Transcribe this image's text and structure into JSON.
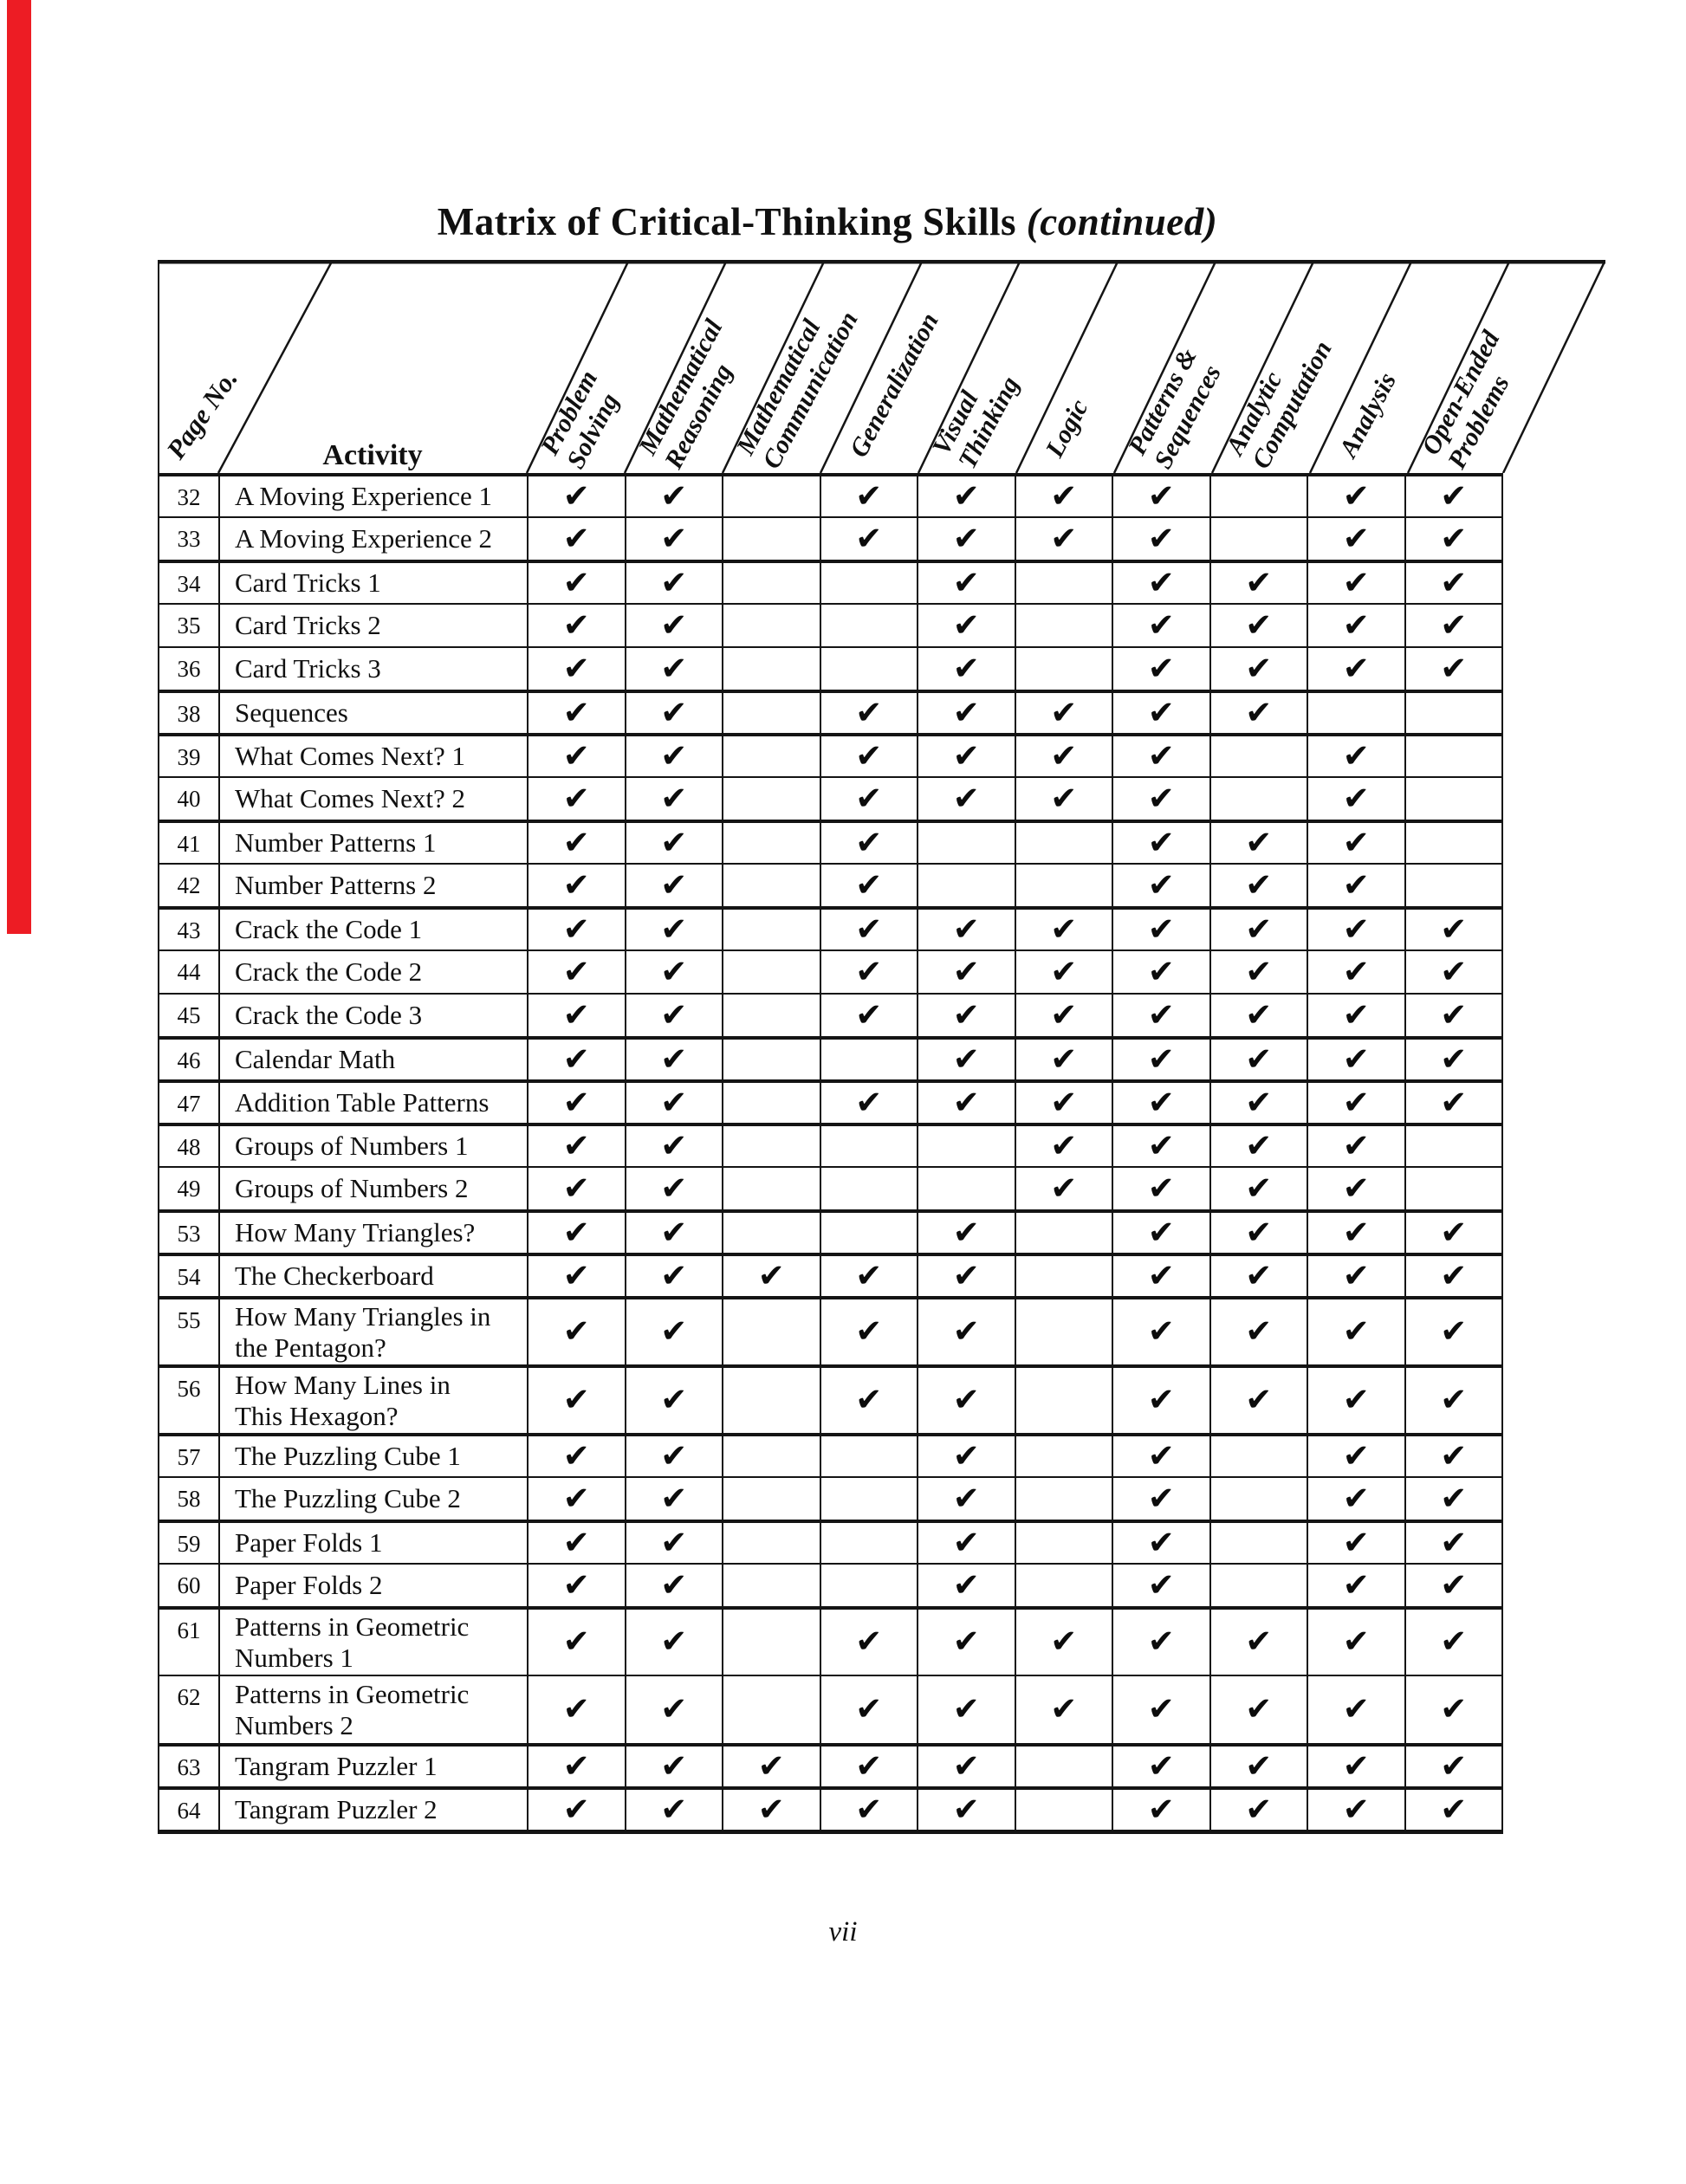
{
  "page": {
    "title_main": "Matrix of Critical-Thinking Skills",
    "title_suffix": "(continued)",
    "footer_page_number": "vii",
    "accent_color": "#ed1c24"
  },
  "table": {
    "corner": {
      "row_axis_label": "Page No.",
      "activity_label": "Activity"
    },
    "check_glyph": "✔",
    "columns": [
      {
        "id": "problem-solving",
        "label_lines": [
          "Problem",
          "Solving"
        ]
      },
      {
        "id": "mathematical-reasoning",
        "label_lines": [
          "Mathematical",
          "Reasoning"
        ]
      },
      {
        "id": "mathematical-communication",
        "label_lines": [
          "Mathematical",
          "Communication"
        ]
      },
      {
        "id": "generalization",
        "label_lines": [
          "Generalization"
        ]
      },
      {
        "id": "visual-thinking",
        "label_lines": [
          "Visual",
          "Thinking"
        ]
      },
      {
        "id": "logic",
        "label_lines": [
          "Logic"
        ]
      },
      {
        "id": "patterns-sequences",
        "label_lines": [
          "Patterns &",
          "Sequences"
        ]
      },
      {
        "id": "analytic-computation",
        "label_lines": [
          "Analytic",
          "Computation"
        ]
      },
      {
        "id": "analysis",
        "label_lines": [
          "Analysis"
        ]
      },
      {
        "id": "open-ended-problems",
        "label_lines": [
          "Open-Ended",
          "Problems"
        ]
      }
    ],
    "rows": [
      {
        "page": "32",
        "activity": "A Moving Experience 1",
        "tall": false,
        "group_start": true,
        "checks": [
          1,
          1,
          0,
          1,
          1,
          1,
          1,
          0,
          1,
          1
        ]
      },
      {
        "page": "33",
        "activity": "A Moving Experience 2",
        "tall": false,
        "group_start": false,
        "checks": [
          1,
          1,
          0,
          1,
          1,
          1,
          1,
          0,
          1,
          1
        ]
      },
      {
        "page": "34",
        "activity": "Card Tricks 1",
        "tall": false,
        "group_start": true,
        "checks": [
          1,
          1,
          0,
          0,
          1,
          0,
          1,
          1,
          1,
          1
        ]
      },
      {
        "page": "35",
        "activity": "Card Tricks 2",
        "tall": false,
        "group_start": false,
        "checks": [
          1,
          1,
          0,
          0,
          1,
          0,
          1,
          1,
          1,
          1
        ]
      },
      {
        "page": "36",
        "activity": "Card Tricks 3",
        "tall": false,
        "group_start": false,
        "checks": [
          1,
          1,
          0,
          0,
          1,
          0,
          1,
          1,
          1,
          1
        ]
      },
      {
        "page": "38",
        "activity": "Sequences",
        "tall": false,
        "group_start": true,
        "checks": [
          1,
          1,
          0,
          1,
          1,
          1,
          1,
          1,
          0,
          0
        ]
      },
      {
        "page": "39",
        "activity": "What Comes Next? 1",
        "tall": false,
        "group_start": true,
        "checks": [
          1,
          1,
          0,
          1,
          1,
          1,
          1,
          0,
          1,
          0
        ]
      },
      {
        "page": "40",
        "activity": "What Comes Next? 2",
        "tall": false,
        "group_start": false,
        "checks": [
          1,
          1,
          0,
          1,
          1,
          1,
          1,
          0,
          1,
          0
        ]
      },
      {
        "page": "41",
        "activity": "Number Patterns 1",
        "tall": false,
        "group_start": true,
        "checks": [
          1,
          1,
          0,
          1,
          0,
          0,
          1,
          1,
          1,
          0
        ]
      },
      {
        "page": "42",
        "activity": "Number Patterns 2",
        "tall": false,
        "group_start": false,
        "checks": [
          1,
          1,
          0,
          1,
          0,
          0,
          1,
          1,
          1,
          0
        ]
      },
      {
        "page": "43",
        "activity": "Crack the Code 1",
        "tall": false,
        "group_start": true,
        "checks": [
          1,
          1,
          0,
          1,
          1,
          1,
          1,
          1,
          1,
          1
        ]
      },
      {
        "page": "44",
        "activity": "Crack the Code 2",
        "tall": false,
        "group_start": false,
        "checks": [
          1,
          1,
          0,
          1,
          1,
          1,
          1,
          1,
          1,
          1
        ]
      },
      {
        "page": "45",
        "activity": "Crack the Code 3",
        "tall": false,
        "group_start": false,
        "checks": [
          1,
          1,
          0,
          1,
          1,
          1,
          1,
          1,
          1,
          1
        ]
      },
      {
        "page": "46",
        "activity": "Calendar Math",
        "tall": false,
        "group_start": true,
        "checks": [
          1,
          1,
          0,
          0,
          1,
          1,
          1,
          1,
          1,
          1
        ]
      },
      {
        "page": "47",
        "activity": "Addition Table Patterns",
        "tall": false,
        "group_start": true,
        "checks": [
          1,
          1,
          0,
          1,
          1,
          1,
          1,
          1,
          1,
          1
        ]
      },
      {
        "page": "48",
        "activity": "Groups of Numbers 1",
        "tall": false,
        "group_start": true,
        "checks": [
          1,
          1,
          0,
          0,
          0,
          1,
          1,
          1,
          1,
          0
        ]
      },
      {
        "page": "49",
        "activity": "Groups of Numbers 2",
        "tall": false,
        "group_start": false,
        "checks": [
          1,
          1,
          0,
          0,
          0,
          1,
          1,
          1,
          1,
          0
        ]
      },
      {
        "page": "53",
        "activity": "How Many Triangles?",
        "tall": false,
        "group_start": true,
        "checks": [
          1,
          1,
          0,
          0,
          1,
          0,
          1,
          1,
          1,
          1
        ]
      },
      {
        "page": "54",
        "activity": "The Checkerboard",
        "tall": false,
        "group_start": true,
        "checks": [
          1,
          1,
          1,
          1,
          1,
          0,
          1,
          1,
          1,
          1
        ]
      },
      {
        "page": "55",
        "activity": "How Many Triangles in\nthe Pentagon?",
        "tall": true,
        "group_start": true,
        "checks": [
          1,
          1,
          0,
          1,
          1,
          0,
          1,
          1,
          1,
          1
        ]
      },
      {
        "page": "56",
        "activity": "How Many Lines in\nThis Hexagon?",
        "tall": true,
        "group_start": true,
        "checks": [
          1,
          1,
          0,
          1,
          1,
          0,
          1,
          1,
          1,
          1
        ]
      },
      {
        "page": "57",
        "activity": "The Puzzling Cube 1",
        "tall": false,
        "group_start": true,
        "checks": [
          1,
          1,
          0,
          0,
          1,
          0,
          1,
          0,
          1,
          1
        ]
      },
      {
        "page": "58",
        "activity": "The Puzzling Cube 2",
        "tall": false,
        "group_start": false,
        "checks": [
          1,
          1,
          0,
          0,
          1,
          0,
          1,
          0,
          1,
          1
        ]
      },
      {
        "page": "59",
        "activity": "Paper Folds 1",
        "tall": false,
        "group_start": true,
        "checks": [
          1,
          1,
          0,
          0,
          1,
          0,
          1,
          0,
          1,
          1
        ]
      },
      {
        "page": "60",
        "activity": "Paper Folds 2",
        "tall": false,
        "group_start": false,
        "checks": [
          1,
          1,
          0,
          0,
          1,
          0,
          1,
          0,
          1,
          1
        ]
      },
      {
        "page": "61",
        "activity": "Patterns in Geometric\nNumbers 1",
        "tall": true,
        "group_start": true,
        "checks": [
          1,
          1,
          0,
          1,
          1,
          1,
          1,
          1,
          1,
          1
        ]
      },
      {
        "page": "62",
        "activity": "Patterns in Geometric\nNumbers 2",
        "tall": true,
        "group_start": false,
        "checks": [
          1,
          1,
          0,
          1,
          1,
          1,
          1,
          1,
          1,
          1
        ]
      },
      {
        "page": "63",
        "activity": "Tangram Puzzler 1",
        "tall": false,
        "group_start": true,
        "checks": [
          1,
          1,
          1,
          1,
          1,
          0,
          1,
          1,
          1,
          1
        ]
      },
      {
        "page": "64",
        "activity": "Tangram Puzzler 2",
        "tall": false,
        "group_start": true,
        "checks": [
          1,
          1,
          1,
          1,
          1,
          0,
          1,
          1,
          1,
          1
        ]
      }
    ]
  }
}
